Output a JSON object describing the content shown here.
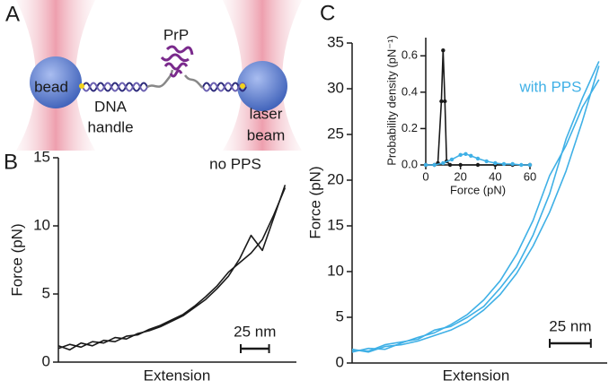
{
  "diagram": {
    "panel_label": "A",
    "protein": "PrP",
    "bead": "bead",
    "dna_handle": [
      "DNA",
      "handle"
    ],
    "laser_beam": [
      "laser",
      "beam"
    ]
  },
  "chart_data": [
    {
      "type": "line",
      "panel_label": "B",
      "xlabel": "Extension",
      "ylabel": "Force (pN)",
      "x": [
        0,
        10,
        20,
        30,
        40,
        50,
        60,
        70,
        80,
        90,
        100,
        110,
        120,
        130,
        140,
        150,
        160,
        170,
        180,
        190,
        200
      ],
      "xlim": [
        0,
        210
      ],
      "ylim": [
        0,
        15
      ],
      "yticks": [
        0,
        5,
        10,
        15
      ],
      "series": [
        {
          "color": "#1a1a1a",
          "values": [
            1.0,
            1.3,
            1.1,
            1.5,
            1.4,
            1.8,
            1.7,
            2.1,
            2.3,
            2.6,
            3.0,
            3.4,
            4.0,
            4.6,
            5.4,
            6.3,
            7.6,
            9.3,
            8.2,
            10.6,
            13.0
          ]
        },
        {
          "color": "#1a1a1a",
          "values": [
            1.2,
            0.9,
            1.4,
            1.2,
            1.6,
            1.5,
            1.9,
            2.0,
            2.4,
            2.7,
            3.1,
            3.5,
            4.1,
            4.8,
            5.6,
            6.6,
            7.3,
            8.0,
            9.0,
            10.8,
            12.8
          ]
        }
      ],
      "annotation": "no PPS",
      "scale_bar": {
        "length": 25,
        "label": "25 nm"
      }
    },
    {
      "type": "line",
      "panel_label": "C",
      "xlabel": "Extension",
      "ylabel": "Force (pN)",
      "x": [
        0,
        10,
        20,
        30,
        40,
        50,
        60,
        70,
        80,
        90,
        100,
        110,
        120,
        130,
        140,
        150
      ],
      "xlim": [
        0,
        155
      ],
      "ylim": [
        0,
        35
      ],
      "yticks": [
        0,
        5,
        10,
        15,
        20,
        25,
        30,
        35
      ],
      "series": [
        {
          "color": "#3fb0e6",
          "values": [
            1.5,
            1.2,
            1.8,
            2.0,
            2.4,
            3.0,
            3.6,
            4.5,
            5.8,
            7.5,
            9.8,
            12.8,
            16.5,
            21.0,
            26.5,
            32.5
          ]
        },
        {
          "color": "#3fb0e6",
          "values": [
            1.2,
            1.6,
            1.5,
            2.2,
            2.8,
            3.3,
            4.2,
            5.3,
            6.9,
            9.0,
            11.9,
            15.6,
            20.5,
            23.8,
            28.0,
            31.0
          ]
        },
        {
          "color": "#3fb0e6",
          "values": [
            1.4,
            1.3,
            2.0,
            2.3,
            2.6,
            3.6,
            4.0,
            5.0,
            6.2,
            8.2,
            10.5,
            14.0,
            18.5,
            24.5,
            29.0,
            33.0
          ]
        }
      ],
      "annotation": "with PPS",
      "scale_bar": {
        "length": 25,
        "label": "25 nm"
      }
    },
    {
      "type": "line",
      "xlabel": "Force (pN)",
      "ylabel": "Probability density (pN⁻¹)",
      "xlim": [
        0,
        60
      ],
      "ylim": [
        0,
        0.7
      ],
      "xticks": [
        0,
        20,
        40,
        60
      ],
      "yticks": [
        {
          "value": 0,
          "label": "0.0"
        },
        0.2,
        0.4,
        0.6
      ],
      "markers": true,
      "series": [
        {
          "color": "#1a1a1a",
          "x": [
            0,
            5,
            7,
            9,
            10,
            11,
            12,
            14,
            20,
            30,
            40,
            50,
            60
          ],
          "values": [
            0,
            0,
            0.01,
            0.35,
            0.63,
            0.35,
            0.02,
            0,
            0,
            0,
            0,
            0,
            0
          ]
        },
        {
          "color": "#3fb0e6",
          "x": [
            0,
            5,
            10,
            15,
            20,
            23,
            26,
            30,
            35,
            40,
            45,
            50,
            55,
            60
          ],
          "values": [
            0,
            0,
            0.01,
            0.03,
            0.055,
            0.06,
            0.05,
            0.035,
            0.02,
            0.01,
            0.005,
            0.005,
            0,
            0
          ]
        }
      ]
    }
  ]
}
